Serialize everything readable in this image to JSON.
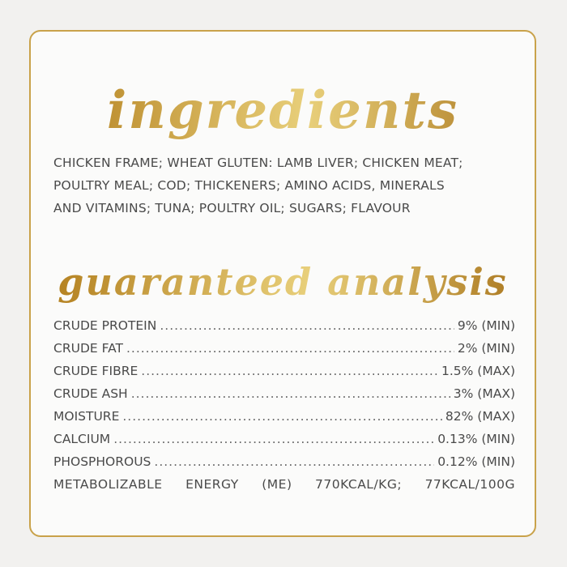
{
  "ingredients": {
    "title": "ingredients",
    "lines": [
      "CHICKEN FRAME; WHEAT GLUTEN: LAMB LIVER; CHICKEN MEAT;",
      "POULTRY MEAL; COD; THICKENERS; AMINO ACIDS, MINERALS",
      "AND VITAMINS; TUNA; POULTRY OIL; SUGARS; FLAVOUR"
    ]
  },
  "analysis": {
    "title": "guaranteed analysis",
    "rows": [
      {
        "label": "CRUDE PROTEIN",
        "value": "9% (MIN)"
      },
      {
        "label": "CRUDE FAT",
        "value": "2% (MIN)"
      },
      {
        "label": "CRUDE FIBRE",
        "value": "1.5% (MAX)"
      },
      {
        "label": "CRUDE ASH",
        "value": "3% (MAX)"
      },
      {
        "label": "MOISTURE",
        "value": "82% (MAX)"
      },
      {
        "label": "CALCIUM",
        "value": "0.13% (MIN)"
      },
      {
        "label": "PHOSPHOROUS",
        "value": "0.12% (MIN)"
      }
    ],
    "energy": [
      "METABOLIZABLE",
      "ENERGY",
      "(ME)",
      "770KCAL/KG;",
      "77KCAL/100G"
    ]
  },
  "colors": {
    "gold": "#c9a24a",
    "text": "#4a4a4a"
  }
}
